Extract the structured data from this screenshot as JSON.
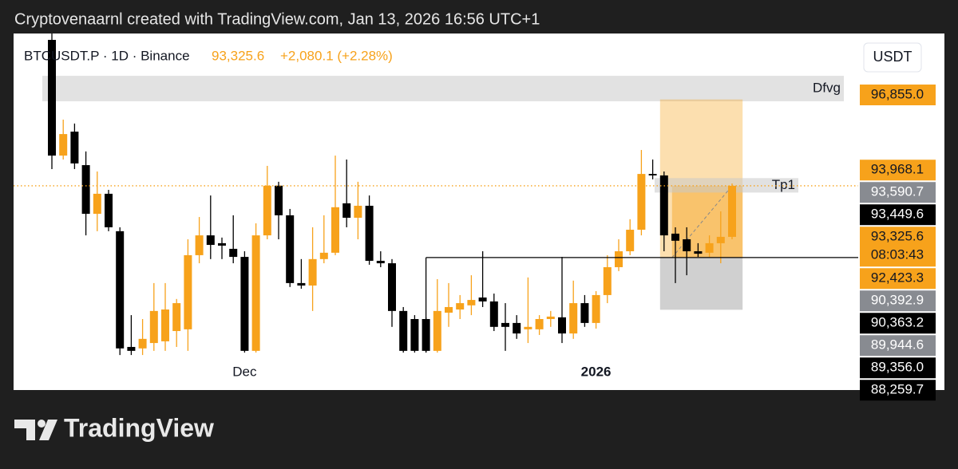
{
  "chart_data": {
    "type": "candlestick",
    "caption": "Cryptovenaarnl created with TradingView.com, Jan 13, 2026 16:56 UTC+1",
    "symbol": "BTCUSDT.P · 1D · Binance",
    "last": "93,325.6",
    "change": "+2,080.1 (+2.28%)",
    "currency": "USDT",
    "watermark": "TradingView",
    "up_color": "#f7a21b",
    "down_color": "#000000",
    "ylim": [
      86250,
      99550
    ],
    "categories": [
      null,
      null,
      null,
      null,
      null,
      null,
      null,
      null,
      null,
      null,
      null,
      null,
      null,
      null,
      null,
      null,
      null,
      "Dec",
      null,
      null,
      null,
      null,
      null,
      null,
      null,
      null,
      null,
      null,
      null,
      null,
      null,
      null,
      null,
      null,
      null,
      null,
      null,
      null,
      null,
      null,
      null,
      null,
      null,
      null,
      null,
      null,
      null,
      null,
      "2026",
      null,
      null,
      null,
      null,
      null,
      null,
      null,
      null,
      null,
      null,
      null,
      null
    ],
    "open": [
      99290,
      94560,
      95540,
      94170,
      92180,
      93000,
      91470,
      86740,
      86680,
      86900,
      86970,
      87390,
      87460,
      90490,
      91300,
      90980,
      90750,
      90420,
      86580,
      91300,
      93330,
      92120,
      89350,
      89250,
      90330,
      90590,
      92610,
      92020,
      92510,
      90260,
      90160,
      88210,
      87880,
      87880,
      86580,
      88140,
      88270,
      88440,
      88760,
      88600,
      87720,
      87720,
      87460,
      87460,
      87880,
      87950,
      87290,
      88530,
      87720,
      88860,
      90000,
      90650,
      91530,
      93810,
      93750,
      91370,
      91140,
      90650,
      90590,
      90980,
      91240
    ],
    "high": [
      99940,
      96030,
      95870,
      94730,
      93910,
      93160,
      91630,
      88040,
      87880,
      89350,
      89350,
      88700,
      91140,
      92050,
      92930,
      91210,
      92120,
      90650,
      91790,
      94140,
      93490,
      92380,
      90330,
      91630,
      92120,
      94560,
      94400,
      93490,
      92930,
      90650,
      90330,
      88370,
      88040,
      87950,
      89510,
      89350,
      88860,
      89670,
      90650,
      88920,
      88530,
      88040,
      89580,
      88040,
      88210,
      90420,
      89450,
      88860,
      89020,
      90490,
      91140,
      91960,
      94790,
      94400,
      93910,
      91630,
      91630,
      90980,
      91300,
      92280,
      93420
    ],
    "low": [
      94010,
      94400,
      94010,
      91300,
      91470,
      91470,
      86410,
      86410,
      86410,
      86580,
      86580,
      86740,
      86580,
      90160,
      90330,
      90330,
      90160,
      86510,
      86510,
      91140,
      91140,
      89190,
      89120,
      88210,
      90160,
      90490,
      91630,
      91140,
      90100,
      90000,
      87560,
      86510,
      86510,
      86510,
      86510,
      87560,
      87880,
      88040,
      88370,
      87390,
      86580,
      87070,
      86900,
      87230,
      87560,
      86900,
      87070,
      87560,
      87490,
      88530,
      89840,
      90490,
      91300,
      93590,
      90650,
      89350,
      89670,
      90420,
      90420,
      90160,
      91140
    ],
    "close": [
      94560,
      95440,
      94240,
      92180,
      93000,
      91630,
      86680,
      86580,
      87070,
      88210,
      88270,
      88530,
      90490,
      91300,
      90910,
      90880,
      90420,
      86580,
      91300,
      93330,
      92120,
      89350,
      89250,
      90330,
      90590,
      92450,
      92020,
      92510,
      90260,
      90160,
      88210,
      86580,
      86580,
      86580,
      88210,
      88370,
      88530,
      88660,
      88600,
      87560,
      87560,
      87290,
      87560,
      87880,
      87980,
      87290,
      88530,
      87720,
      88860,
      90000,
      90650,
      91530,
      93810,
      93750,
      91300,
      91080,
      90650,
      90550,
      90980,
      91240,
      93325.6
    ],
    "zone": {
      "label": "Dfvg",
      "top": 97820,
      "bottom": 96780
    },
    "tp": {
      "label": "Tp1",
      "top": 93640,
      "bottom": 93050
    },
    "position": {
      "entry": 90392.9,
      "target": 96855.0,
      "stop": 88259.7
    },
    "price_tags": [
      {
        "value": 96855.0,
        "label": "96,855.0",
        "bg": "#f7a21b"
      },
      {
        "value": 93968.1,
        "label": "93,968.1",
        "bg": "#f7a21b"
      },
      {
        "value": 93590.7,
        "label": "93,590.7",
        "bg": "#888b91"
      },
      {
        "value": 93449.6,
        "label": "93,449.6",
        "bg": "#000000"
      },
      {
        "value": 93325.6,
        "label": "93,325.6",
        "countdown": "08:03:43",
        "bg": "#f7a21b"
      },
      {
        "value": 92423.3,
        "label": "92,423.3",
        "bg": "#f7a21b"
      },
      {
        "value": 90392.9,
        "label": "90,392.9",
        "bg": "#888b91"
      },
      {
        "value": 90363.2,
        "label": "90,363.2",
        "bg": "#000000"
      },
      {
        "value": 89944.6,
        "label": "89,944.6",
        "bg": "#888b91"
      },
      {
        "value": 89356.0,
        "label": "89,356.0",
        "bg": "#000000"
      },
      {
        "value": 88259.7,
        "label": "88,259.7",
        "bg": "#000000"
      }
    ]
  }
}
